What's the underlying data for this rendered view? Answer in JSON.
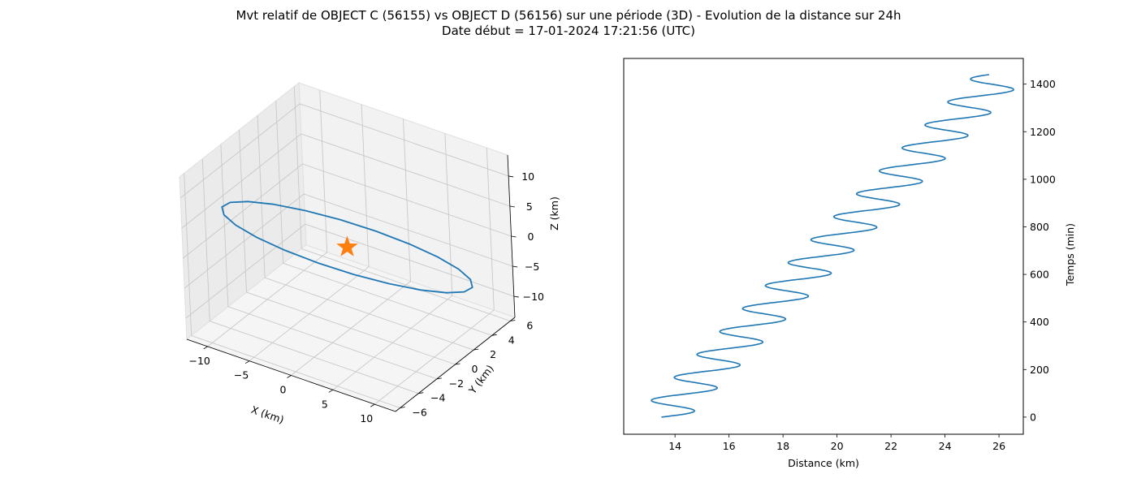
{
  "title_line1": "Mvt relatif de OBJECT C (56155) vs OBJECT D (56156) sur une période (3D) - Evolution de la distance sur 24h",
  "title_line2": "Date début = 17-01-2024 17:21:56 (UTC)",
  "chart_data": [
    {
      "type": "line3d",
      "xlabel": "X (km)",
      "ylabel": "Y (km)",
      "zlabel": "Z (km)",
      "xlim": [
        -12.5,
        12.5
      ],
      "ylim": [
        -6.5,
        6.5
      ],
      "zlim": [
        -13.5,
        13.5
      ],
      "xticks": [
        -10,
        -5,
        0,
        5,
        10
      ],
      "yticks": [
        -6,
        -4,
        -2,
        0,
        2,
        4,
        6
      ],
      "zticks": [
        -10,
        -5,
        0,
        5,
        10
      ],
      "grid": true,
      "series_color": "#1f77b4",
      "marker": {
        "shape": "star",
        "color": "#ff7f0e",
        "x": 0,
        "y": 0,
        "z": 0
      },
      "trajectory": {
        "a": 12,
        "b": 6,
        "c": 13,
        "steps": 22
      }
    },
    {
      "type": "line",
      "xlabel": "Distance (km)",
      "ylabel": "Temps (min)",
      "xlim": [
        12.1,
        26.9
      ],
      "ylim": [
        -72,
        1508
      ],
      "xticks": [
        14,
        16,
        18,
        20,
        22,
        24,
        26
      ],
      "yticks": [
        0,
        200,
        400,
        600,
        800,
        1000,
        1200,
        1400
      ],
      "y_axis_side": "right",
      "series_color": "#1f77b4",
      "trend": {
        "start_distance": 13.5,
        "end_distance": 26.1,
        "duration_min": 1440
      },
      "oscillation": {
        "amplitude_km": 1.0,
        "period_min": 96.5
      }
    }
  ]
}
